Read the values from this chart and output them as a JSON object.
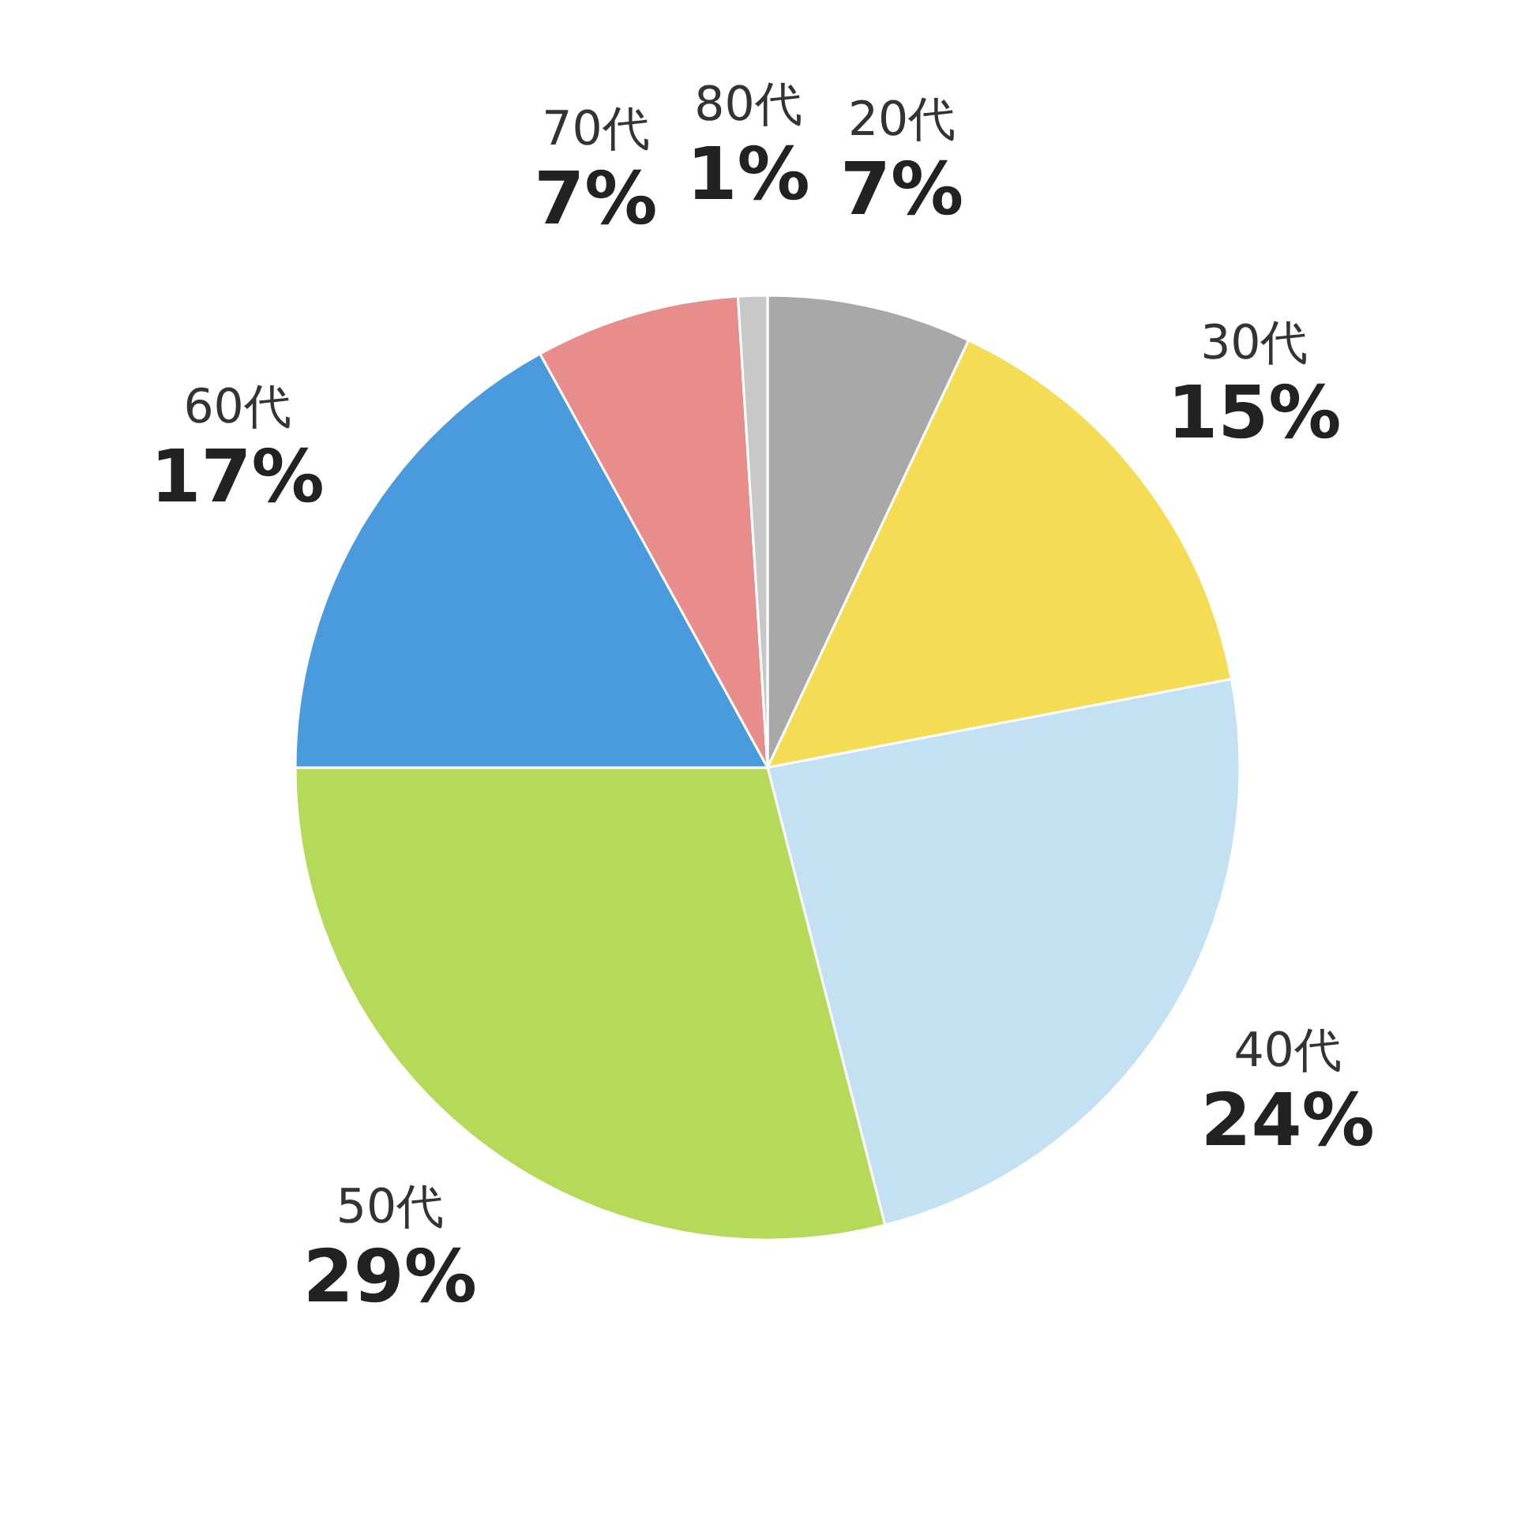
{
  "chart_data": {
    "type": "pie",
    "categories": [
      "20代",
      "30代",
      "40代",
      "50代",
      "60代",
      "70代",
      "80代"
    ],
    "values": [
      7,
      15,
      24,
      29,
      17,
      7,
      1
    ],
    "value_labels": [
      "7%",
      "15%",
      "24%",
      "29%",
      "17%",
      "7%",
      "1%"
    ],
    "colors": [
      "#a8a8a8",
      "#f4dc55",
      "#c3e1f3",
      "#b5d958",
      "#4a9bdd",
      "#e88c8c",
      "#c8c8c8"
    ]
  }
}
